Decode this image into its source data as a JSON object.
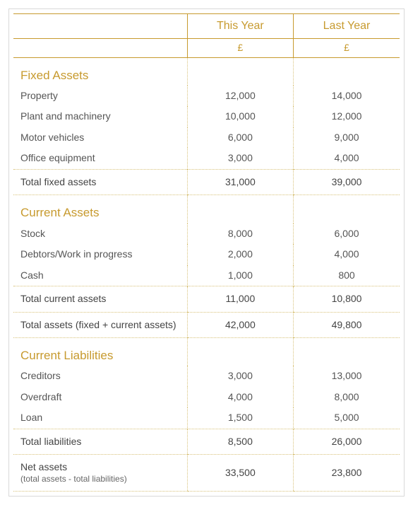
{
  "colors": {
    "gold": "#c79a2e",
    "dot": "#d8c27a",
    "text": "#555555",
    "frame": "#d9d9d9",
    "bg": "#ffffff"
  },
  "header": {
    "blank": "",
    "thisYear": "This Year",
    "lastYear": "Last Year",
    "unit": "£"
  },
  "sections": [
    {
      "title": "Fixed Assets",
      "rows": [
        {
          "label": "Property",
          "thisYear": "12,000",
          "lastYear": "14,000"
        },
        {
          "label": "Plant and machinery",
          "thisYear": "10,000",
          "lastYear": "12,000"
        },
        {
          "label": "Motor vehicles",
          "thisYear": "6,000",
          "lastYear": "9,000"
        },
        {
          "label": "Office equipment",
          "thisYear": "3,000",
          "lastYear": "4,000"
        }
      ],
      "totals": [
        {
          "label": "Total fixed assets",
          "thisYear": "31,000",
          "lastYear": "39,000"
        }
      ]
    },
    {
      "title": "Current Assets",
      "rows": [
        {
          "label": "Stock",
          "thisYear": "8,000",
          "lastYear": "6,000"
        },
        {
          "label": "Debtors/Work in progress",
          "thisYear": "2,000",
          "lastYear": "4,000"
        },
        {
          "label": "Cash",
          "thisYear": "1,000",
          "lastYear": "800"
        }
      ],
      "totals": [
        {
          "label": "Total current assets",
          "thisYear": "11,000",
          "lastYear": "10,800"
        },
        {
          "label": "Total assets (fixed + current assets)",
          "thisYear": "42,000",
          "lastYear": "49,800"
        }
      ]
    },
    {
      "title": "Current Liabilities",
      "rows": [
        {
          "label": "Creditors",
          "thisYear": "3,000",
          "lastYear": "13,000"
        },
        {
          "label": "Overdraft",
          "thisYear": "4,000",
          "lastYear": "8,000"
        },
        {
          "label": "Loan",
          "thisYear": "1,500",
          "lastYear": "5,000"
        }
      ],
      "totals": [
        {
          "label": "Total liabilities",
          "thisYear": "8,500",
          "lastYear": "26,000"
        },
        {
          "label": "Net assets",
          "sublabel": "(total assets - total liabilities)",
          "thisYear": "33,500",
          "lastYear": "23,800"
        }
      ]
    }
  ]
}
